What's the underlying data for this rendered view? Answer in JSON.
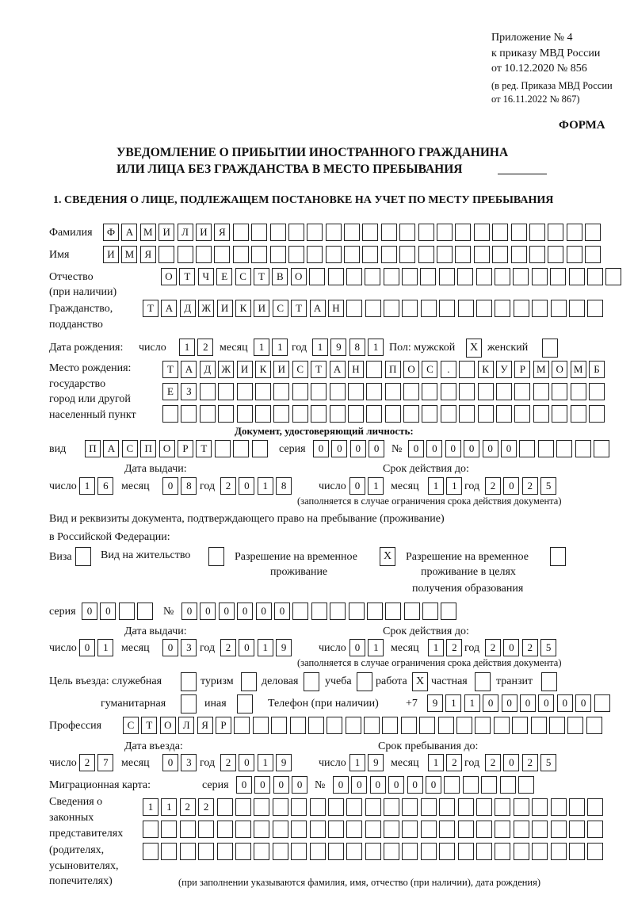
{
  "header": {
    "appendix": [
      "Приложение № 4",
      "к приказу МВД России",
      "от 10.12.2020 № 856"
    ],
    "revision": [
      "(в ред. Приказа МВД России",
      "от 16.11.2022 № 867)"
    ],
    "form_label": "ФОРМА",
    "title": [
      "УВЕДОМЛЕНИЕ О ПРИБЫТИИ ИНОСТРАННОГО ГРАЖДАНИНА",
      "ИЛИ ЛИЦА БЕЗ ГРАЖДАНСТВА В МЕСТО ПРЕБЫВАНИЯ"
    ],
    "section1": "1. СВЕДЕНИЯ О ЛИЦЕ, ПОДЛЕЖАЩЕМ ПОСТАНОВКЕ НА УЧЕТ ПО МЕСТУ ПРЕБЫВАНИЯ"
  },
  "labels": {
    "surname": "Фамилия",
    "name": "Имя",
    "patronymic": "Отчество",
    "patronymic_note": "(при наличии)",
    "citizenship": "Гражданство,",
    "citizenship2": "подданство",
    "dob": "Дата рождения:",
    "day": "число",
    "month": "месяц",
    "year": "год",
    "sex": "Пол: мужской",
    "female": "женский",
    "birthplace": [
      "Место рождения:",
      "государство",
      "город или другой",
      "населенный пункт"
    ],
    "id_doc": "Документ, удостоверяющий личность:",
    "kind": "вид",
    "series": "серия",
    "number": "№",
    "issue_date": "Дата выдачи:",
    "valid_until": "Срок действия до:",
    "valid_note": "(заполняется в случае ограничения срока действия документа)",
    "right_doc": "Вид и реквизиты документа, подтверждающего право на пребывание (проживание)",
    "right_doc2": "в Российской Федерации:",
    "visa": "Виза",
    "residence": "Вид на жительство",
    "temp_permit": [
      "Разрешение на временное",
      "проживание"
    ],
    "temp_permit_edu": [
      "Разрешение на временное",
      "проживание в целях",
      "получения образования"
    ],
    "purpose": "Цель въезда: служебная",
    "tourism": "туризм",
    "business": "деловая",
    "study": "учеба",
    "work": "работа",
    "private": "частная",
    "transit": "транзит",
    "humanitarian": "гуманитарная",
    "other": "иная",
    "phone": "Телефон (при наличии)",
    "phone_prefix": "+7",
    "profession": "Профессия",
    "entry_date": "Дата въезда:",
    "stay_until": "Срок пребывания до:",
    "migration_card": "Миграционная карта:",
    "guardians": [
      "Сведения о",
      "законных",
      "представителях",
      "(родителях,",
      "усыновителях,",
      "попечителях)"
    ],
    "guardians_note": "(при заполнении указываются фамилия, имя, отчество (при наличии), дата рождения)"
  },
  "person": {
    "surname": [
      "Ф",
      "А",
      "М",
      "И",
      "Л",
      "И",
      "Я",
      "",
      "",
      "",
      "",
      "",
      "",
      "",
      "",
      "",
      "",
      "",
      "",
      "",
      "",
      "",
      "",
      "",
      "",
      "",
      ""
    ],
    "name": [
      "И",
      "М",
      "Я",
      "",
      "",
      "",
      "",
      "",
      "",
      "",
      "",
      "",
      "",
      "",
      "",
      "",
      "",
      "",
      "",
      "",
      "",
      "",
      "",
      "",
      "",
      "",
      ""
    ],
    "patronymic": [
      "О",
      "Т",
      "Ч",
      "Е",
      "С",
      "Т",
      "В",
      "О",
      "",
      "",
      "",
      "",
      "",
      "",
      "",
      "",
      "",
      "",
      "",
      "",
      "",
      "",
      "",
      "",
      ""
    ],
    "citizenship": [
      "Т",
      "А",
      "Д",
      "Ж",
      "И",
      "К",
      "И",
      "С",
      "Т",
      "А",
      "Н",
      "",
      "",
      "",
      "",
      "",
      "",
      "",
      "",
      "",
      "",
      "",
      "",
      "",
      ""
    ],
    "dob_day": [
      "1",
      "2"
    ],
    "dob_month": [
      "1",
      "1"
    ],
    "dob_year": [
      "1",
      "9",
      "8",
      "1"
    ],
    "sex_male": "X",
    "sex_female": "",
    "birthplace_1": [
      "Т",
      "А",
      "Д",
      "Ж",
      "И",
      "К",
      "И",
      "С",
      "Т",
      "А",
      "Н",
      "",
      "П",
      "О",
      "С",
      ".",
      "",
      "К",
      "У",
      "Р",
      "М",
      "О",
      "М",
      "Б"
    ],
    "birthplace_2": [
      "Е",
      "З",
      "",
      "",
      "",
      "",
      "",
      "",
      "",
      "",
      "",
      "",
      "",
      "",
      "",
      "",
      "",
      "",
      "",
      "",
      "",
      "",
      "",
      ""
    ],
    "birthplace_3": [
      "",
      "",
      "",
      "",
      "",
      "",
      "",
      "",
      "",
      "",
      "",
      "",
      "",
      "",
      "",
      "",
      "",
      "",
      "",
      "",
      "",
      "",
      "",
      ""
    ]
  },
  "id_document": {
    "kind": [
      "П",
      "А",
      "С",
      "П",
      "О",
      "Р",
      "Т",
      "",
      "",
      ""
    ],
    "series": [
      "0",
      "0",
      "0",
      "0"
    ],
    "number": [
      "0",
      "0",
      "0",
      "0",
      "0",
      "0",
      "",
      "",
      "",
      "",
      ""
    ],
    "issue_day": [
      "1",
      "6"
    ],
    "issue_month": [
      "0",
      "8"
    ],
    "issue_year": [
      "2",
      "0",
      "1",
      "8"
    ],
    "valid_day": [
      "0",
      "1"
    ],
    "valid_month": [
      "1",
      "1"
    ],
    "valid_year": [
      "2",
      "0",
      "2",
      "5"
    ]
  },
  "right_document": {
    "visa": "",
    "residence": "",
    "temp_permit": "X",
    "temp_permit_edu": "",
    "series": [
      "0",
      "0",
      "",
      ""
    ],
    "number": [
      "0",
      "0",
      "0",
      "0",
      "0",
      "0",
      "",
      "",
      "",
      "",
      "",
      "",
      "",
      "",
      ""
    ],
    "issue_day": [
      "0",
      "1"
    ],
    "issue_month": [
      "0",
      "3"
    ],
    "issue_year": [
      "2",
      "0",
      "1",
      "9"
    ],
    "valid_day": [
      "0",
      "1"
    ],
    "valid_month": [
      "1",
      "2"
    ],
    "valid_year": [
      "2",
      "0",
      "2",
      "5"
    ]
  },
  "purpose": {
    "official": "",
    "tourism": "",
    "business": "",
    "study": "",
    "work": "X",
    "private": "",
    "transit": "",
    "humanitarian": "",
    "other": ""
  },
  "phone": [
    "9",
    "1",
    "1",
    "0",
    "0",
    "0",
    "0",
    "0",
    "0",
    ""
  ],
  "profession": [
    "С",
    "Т",
    "О",
    "Л",
    "Я",
    "Р",
    "",
    "",
    "",
    "",
    "",
    "",
    "",
    "",
    "",
    "",
    "",
    "",
    "",
    "",
    "",
    "",
    "",
    "",
    "",
    ""
  ],
  "stay": {
    "entry_day": [
      "2",
      "7"
    ],
    "entry_month": [
      "0",
      "3"
    ],
    "entry_year": [
      "2",
      "0",
      "1",
      "9"
    ],
    "until_day": [
      "1",
      "9"
    ],
    "until_month": [
      "1",
      "2"
    ],
    "until_year": [
      "2",
      "0",
      "2",
      "5"
    ]
  },
  "migration_card": {
    "series": [
      "0",
      "0",
      "0",
      "0"
    ],
    "number": [
      "0",
      "0",
      "0",
      "0",
      "0",
      "0",
      "",
      "",
      "",
      "",
      ""
    ]
  },
  "guardians": {
    "row1": [
      "1",
      "1",
      "2",
      "2",
      "",
      "",
      "",
      "",
      "",
      "",
      "",
      "",
      "",
      "",
      "",
      "",
      "",
      "",
      "",
      "",
      "",
      "",
      "",
      "",
      ""
    ],
    "row2": [
      "",
      "",
      "",
      "",
      "",
      "",
      "",
      "",
      "",
      "",
      "",
      "",
      "",
      "",
      "",
      "",
      "",
      "",
      "",
      "",
      "",
      "",
      "",
      "",
      ""
    ],
    "row3": [
      "",
      "",
      "",
      "",
      "",
      "",
      "",
      "",
      "",
      "",
      "",
      "",
      "",
      "",
      "",
      "",
      "",
      "",
      "",
      "",
      "",
      "",
      "",
      "",
      ""
    ]
  }
}
